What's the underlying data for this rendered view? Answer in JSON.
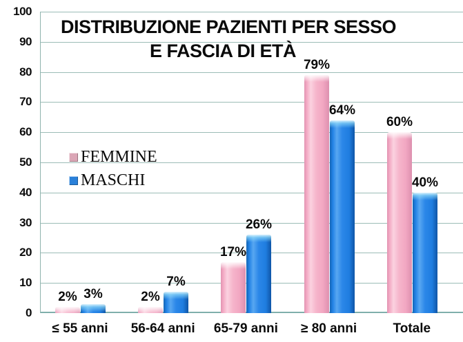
{
  "title": {
    "line1": "DISTRIBUZIONE PAZIENTI PER SESSO",
    "line2": "E FASCIA DI ETÀ"
  },
  "axes": {
    "yticks": [
      0,
      10,
      20,
      30,
      40,
      50,
      60,
      70,
      80,
      90,
      100
    ],
    "ymin": 0,
    "ymax": 100
  },
  "legend": {
    "items": [
      {
        "label": "FEMMINE",
        "swatch_color": "#dba6b6"
      },
      {
        "label": "MASCHI",
        "swatch_color": "#2a80d9"
      }
    ]
  },
  "colors": {
    "femmine_bar": "#f3aac4",
    "maschi_bar": "#2383e6",
    "gridline": "#9bbcb6",
    "text": "#0a0a0a",
    "background": "#ffffff"
  },
  "chart_data": {
    "type": "bar",
    "title": "DISTRIBUZIONE PAZIENTI PER SESSO E FASCIA DI ETÀ",
    "categories": [
      "≤ 55 anni",
      "56-64 anni",
      "65-79 anni",
      "≥ 80 anni",
      "Totale"
    ],
    "series": [
      {
        "name": "FEMMINE",
        "key": "femmine",
        "values": [
          2,
          2,
          17,
          79,
          60
        ],
        "data_labels": [
          "2%",
          "2%",
          "17%",
          "79%",
          "60%"
        ],
        "color": "#f3aac4"
      },
      {
        "name": "MASCHI",
        "key": "maschi",
        "values": [
          3,
          7,
          26,
          64,
          40
        ],
        "data_labels": [
          "3%",
          "7%",
          "26%",
          "64%",
          "40%"
        ],
        "color": "#2383e6"
      }
    ],
    "xlabel": "",
    "ylabel": "",
    "ylim": [
      0,
      100
    ],
    "grid": true,
    "legend_position": "inside-left",
    "data_labels_shown": true
  }
}
